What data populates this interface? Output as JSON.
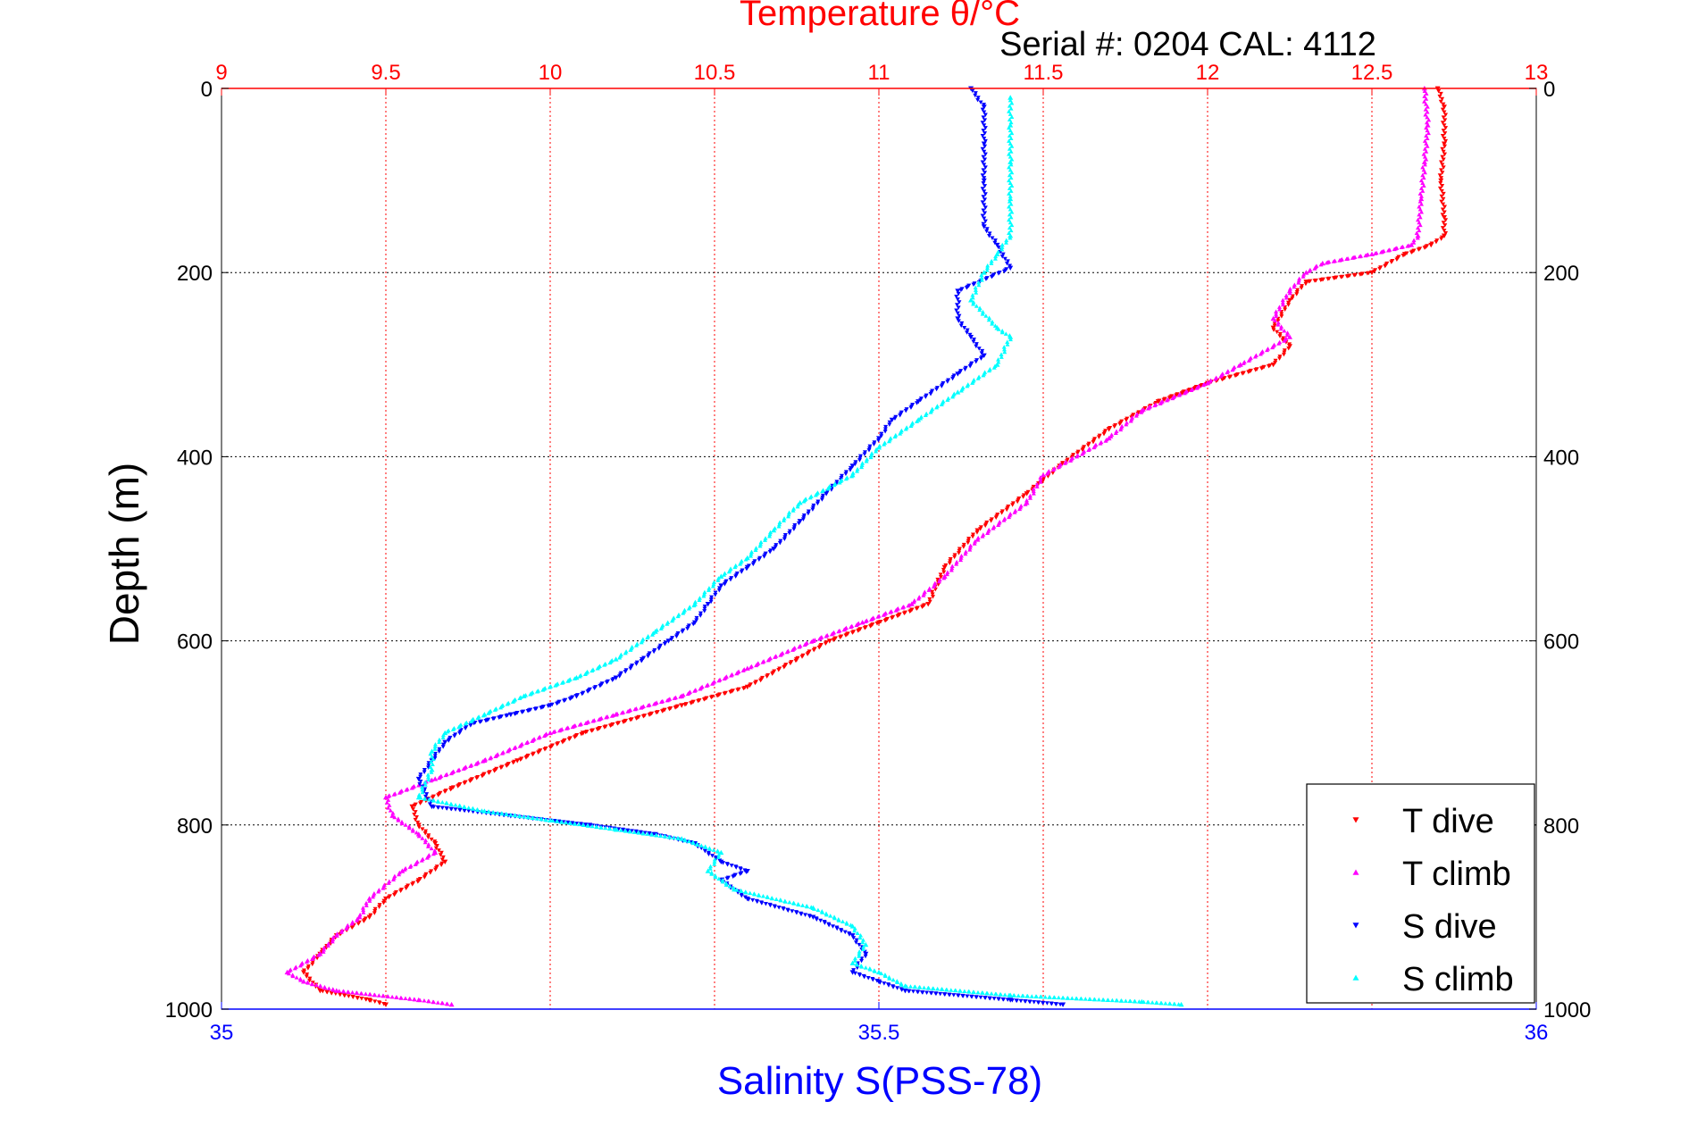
{
  "chart_data": {
    "type": "scatter",
    "title": "Temperature θ/°C",
    "subtitle": "Serial #: 0204  CAL: 4112",
    "ylabel": "Depth (m)",
    "xlabel_bottom": "Salinity S(PSS-78)",
    "x_top": {
      "label": "Temperature θ/°C",
      "lim": [
        9,
        13
      ],
      "ticks": [
        "9",
        "9.5",
        "10",
        "10.5",
        "11",
        "11.5",
        "12",
        "12.5",
        "13"
      ]
    },
    "x_bottom": {
      "label": "Salinity S(PSS-78)",
      "lim": [
        35,
        36
      ],
      "ticks": [
        "35",
        "35.5",
        "36"
      ]
    },
    "y": {
      "label": "Depth (m)",
      "lim": [
        0,
        1000
      ],
      "reversed": true,
      "ticks": [
        "0",
        "200",
        "400",
        "600",
        "800",
        "1000"
      ]
    },
    "grid": true,
    "legend_position": "bottom-right",
    "colors": {
      "T dive": "#ff0000",
      "T climb": "#ff00ff",
      "S dive": "#0000ff",
      "S climb": "#00ffff",
      "top_axis": "#ff0000",
      "bottom_axis": "#0000ff"
    },
    "series": [
      {
        "name": "T dive",
        "axis": "top",
        "marker": "triangle-down",
        "points": [
          [
            12.7,
            0
          ],
          [
            12.72,
            20
          ],
          [
            12.72,
            60
          ],
          [
            12.71,
            100
          ],
          [
            12.72,
            140
          ],
          [
            12.72,
            160
          ],
          [
            12.68,
            170
          ],
          [
            12.6,
            180
          ],
          [
            12.5,
            200
          ],
          [
            12.3,
            210
          ],
          [
            12.25,
            230
          ],
          [
            12.2,
            260
          ],
          [
            12.25,
            280
          ],
          [
            12.2,
            300
          ],
          [
            12.0,
            320
          ],
          [
            11.85,
            340
          ],
          [
            11.7,
            370
          ],
          [
            11.55,
            410
          ],
          [
            11.45,
            440
          ],
          [
            11.3,
            480
          ],
          [
            11.2,
            520
          ],
          [
            11.15,
            560
          ],
          [
            11.0,
            580
          ],
          [
            10.85,
            600
          ],
          [
            10.75,
            620
          ],
          [
            10.6,
            650
          ],
          [
            10.4,
            670
          ],
          [
            10.1,
            700
          ],
          [
            9.9,
            730
          ],
          [
            9.7,
            760
          ],
          [
            9.58,
            780
          ],
          [
            9.6,
            800
          ],
          [
            9.65,
            820
          ],
          [
            9.68,
            840
          ],
          [
            9.6,
            860
          ],
          [
            9.5,
            880
          ],
          [
            9.45,
            900
          ],
          [
            9.35,
            920
          ],
          [
            9.3,
            940
          ],
          [
            9.25,
            960
          ],
          [
            9.3,
            980
          ],
          [
            9.45,
            990
          ],
          [
            9.5,
            995
          ]
        ]
      },
      {
        "name": "T climb",
        "axis": "top",
        "marker": "triangle-up",
        "points": [
          [
            12.66,
            0
          ],
          [
            12.67,
            40
          ],
          [
            12.66,
            80
          ],
          [
            12.65,
            120
          ],
          [
            12.64,
            160
          ],
          [
            12.62,
            170
          ],
          [
            12.5,
            180
          ],
          [
            12.35,
            190
          ],
          [
            12.3,
            200
          ],
          [
            12.25,
            220
          ],
          [
            12.2,
            250
          ],
          [
            12.25,
            270
          ],
          [
            12.1,
            300
          ],
          [
            12.0,
            320
          ],
          [
            11.8,
            350
          ],
          [
            11.7,
            380
          ],
          [
            11.5,
            420
          ],
          [
            11.45,
            450
          ],
          [
            11.3,
            490
          ],
          [
            11.2,
            530
          ],
          [
            11.1,
            560
          ],
          [
            10.95,
            580
          ],
          [
            10.8,
            600
          ],
          [
            10.6,
            630
          ],
          [
            10.4,
            660
          ],
          [
            10.2,
            680
          ],
          [
            10.0,
            700
          ],
          [
            9.8,
            730
          ],
          [
            9.65,
            750
          ],
          [
            9.5,
            770
          ],
          [
            9.52,
            790
          ],
          [
            9.6,
            810
          ],
          [
            9.65,
            830
          ],
          [
            9.55,
            850
          ],
          [
            9.45,
            880
          ],
          [
            9.42,
            900
          ],
          [
            9.35,
            920
          ],
          [
            9.3,
            940
          ],
          [
            9.2,
            960
          ],
          [
            9.25,
            970
          ],
          [
            9.35,
            980
          ],
          [
            9.6,
            990
          ],
          [
            9.7,
            995
          ]
        ]
      },
      {
        "name": "S dive",
        "axis": "bottom",
        "marker": "triangle-down",
        "points": [
          [
            35.57,
            0
          ],
          [
            35.58,
            20
          ],
          [
            35.58,
            60
          ],
          [
            35.58,
            100
          ],
          [
            35.58,
            150
          ],
          [
            35.59,
            170
          ],
          [
            35.6,
            195
          ],
          [
            35.56,
            220
          ],
          [
            35.56,
            250
          ],
          [
            35.57,
            270
          ],
          [
            35.58,
            290
          ],
          [
            35.56,
            310
          ],
          [
            35.53,
            340
          ],
          [
            35.51,
            360
          ],
          [
            35.5,
            380
          ],
          [
            35.48,
            410
          ],
          [
            35.46,
            440
          ],
          [
            35.44,
            470
          ],
          [
            35.42,
            500
          ],
          [
            35.4,
            520
          ],
          [
            35.38,
            540
          ],
          [
            35.37,
            560
          ],
          [
            35.36,
            580
          ],
          [
            35.34,
            600
          ],
          [
            35.32,
            620
          ],
          [
            35.3,
            640
          ],
          [
            35.27,
            660
          ],
          [
            35.25,
            670
          ],
          [
            35.22,
            680
          ],
          [
            35.19,
            690
          ],
          [
            35.17,
            710
          ],
          [
            35.16,
            730
          ],
          [
            35.15,
            750
          ],
          [
            35.16,
            780
          ],
          [
            35.22,
            790
          ],
          [
            35.28,
            800
          ],
          [
            35.33,
            810
          ],
          [
            35.36,
            820
          ],
          [
            35.38,
            840
          ],
          [
            35.4,
            850
          ],
          [
            35.38,
            860
          ],
          [
            35.4,
            880
          ],
          [
            35.45,
            900
          ],
          [
            35.48,
            920
          ],
          [
            35.49,
            940
          ],
          [
            35.48,
            960
          ],
          [
            35.5,
            970
          ],
          [
            35.52,
            980
          ],
          [
            35.6,
            990
          ],
          [
            35.64,
            995
          ]
        ]
      },
      {
        "name": "S climb",
        "axis": "bottom",
        "marker": "triangle-up",
        "points": [
          [
            35.6,
            10
          ],
          [
            35.6,
            40
          ],
          [
            35.6,
            80
          ],
          [
            35.6,
            120
          ],
          [
            35.6,
            160
          ],
          [
            35.59,
            180
          ],
          [
            35.58,
            200
          ],
          [
            35.57,
            230
          ],
          [
            35.59,
            260
          ],
          [
            35.6,
            270
          ],
          [
            35.59,
            300
          ],
          [
            35.56,
            330
          ],
          [
            35.53,
            360
          ],
          [
            35.5,
            390
          ],
          [
            35.48,
            420
          ],
          [
            35.44,
            450
          ],
          [
            35.42,
            480
          ],
          [
            35.4,
            510
          ],
          [
            35.38,
            530
          ],
          [
            35.36,
            560
          ],
          [
            35.33,
            590
          ],
          [
            35.3,
            620
          ],
          [
            35.27,
            640
          ],
          [
            35.23,
            660
          ],
          [
            35.2,
            680
          ],
          [
            35.17,
            700
          ],
          [
            35.16,
            720
          ],
          [
            35.16,
            740
          ],
          [
            35.15,
            770
          ],
          [
            35.2,
            785
          ],
          [
            35.25,
            795
          ],
          [
            35.3,
            805
          ],
          [
            35.35,
            815
          ],
          [
            35.38,
            830
          ],
          [
            35.37,
            850
          ],
          [
            35.39,
            870
          ],
          [
            35.45,
            890
          ],
          [
            35.48,
            910
          ],
          [
            35.49,
            930
          ],
          [
            35.48,
            950
          ],
          [
            35.5,
            960
          ],
          [
            35.52,
            975
          ],
          [
            35.6,
            985
          ],
          [
            35.7,
            992
          ],
          [
            35.73,
            995
          ]
        ]
      }
    ]
  }
}
